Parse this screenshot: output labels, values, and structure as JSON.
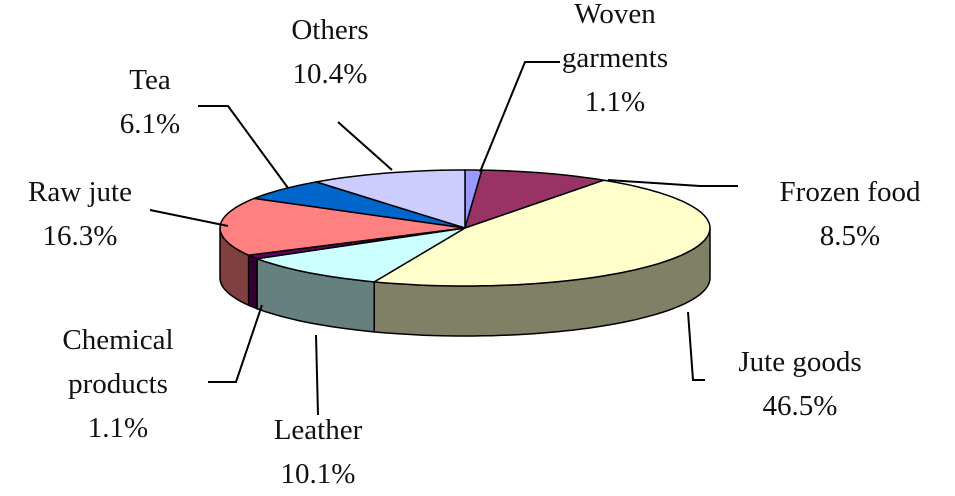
{
  "chart_data": {
    "type": "pie",
    "categories": [
      "Woven garments",
      "Frozen food",
      "Jute goods",
      "Leather",
      "Chemical products",
      "Raw jute",
      "Tea",
      "Others"
    ],
    "values": [
      1.1,
      8.5,
      46.5,
      10.1,
      1.1,
      16.3,
      6.1,
      10.4
    ],
    "value_labels": [
      "1.1%",
      "8.5%",
      "46.5%",
      "10.1%",
      "1.1%",
      "16.3%",
      "6.1%",
      "10.4%"
    ],
    "colors": [
      "#9999ff",
      "#993366",
      "#ffffcc",
      "#ccffff",
      "#660066",
      "#ff8080",
      "#0066cc",
      "#ccccff"
    ]
  }
}
